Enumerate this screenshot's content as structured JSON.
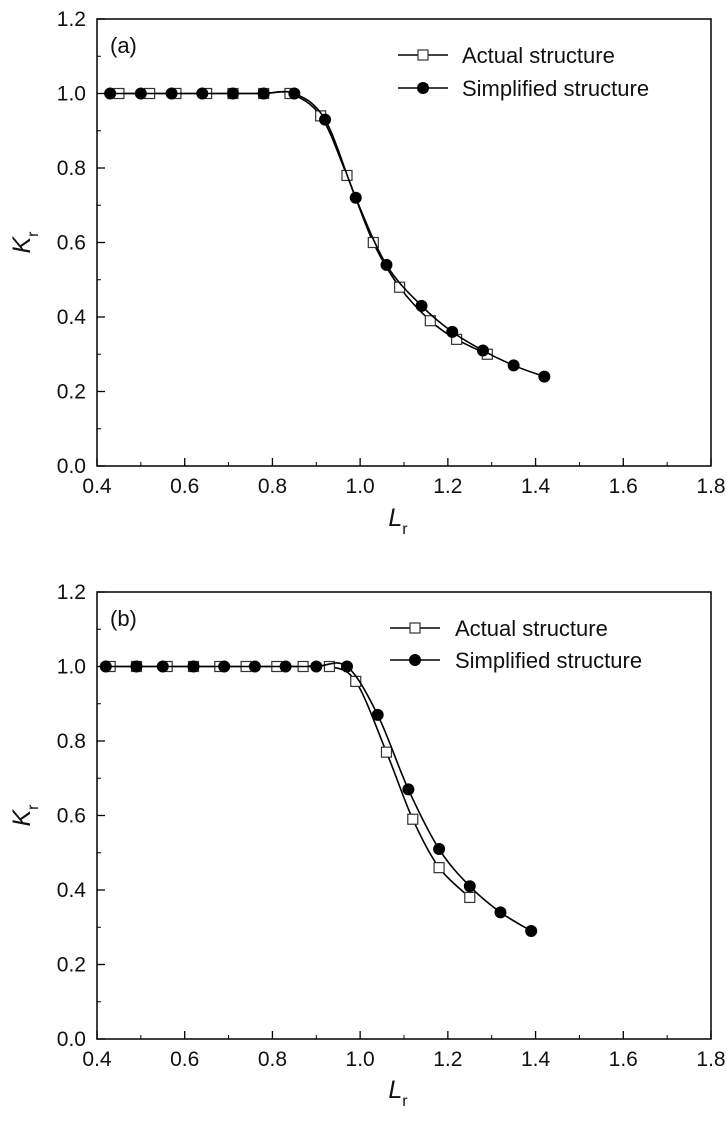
{
  "chart_data": [
    {
      "type": "line",
      "panel_label": "(a)",
      "xlabel": "L",
      "xlabel_sub": "r",
      "ylabel": "K",
      "ylabel_sub": "r",
      "xlim": [
        0.4,
        1.8
      ],
      "ylim": [
        0.0,
        1.2
      ],
      "xticks": [
        "0.4",
        "0.6",
        "0.8",
        "1.0",
        "1.2",
        "1.4",
        "1.6",
        "1.8"
      ],
      "yticks": [
        "0.0",
        "0.2",
        "0.4",
        "0.6",
        "0.8",
        "1.0",
        "1.2"
      ],
      "grid": false,
      "legend_position": "top-right",
      "series": [
        {
          "name": "Actual structure",
          "marker": "open-square",
          "x": [
            0.45,
            0.52,
            0.58,
            0.65,
            0.71,
            0.78,
            0.84,
            0.91,
            0.97,
            1.03,
            1.09,
            1.16,
            1.22,
            1.29
          ],
          "y": [
            1.0,
            1.0,
            1.0,
            1.0,
            1.0,
            1.0,
            1.0,
            0.94,
            0.78,
            0.6,
            0.48,
            0.39,
            0.34,
            0.3
          ]
        },
        {
          "name": "Simplified structure",
          "marker": "filled-circle",
          "x": [
            0.43,
            0.5,
            0.57,
            0.64,
            0.71,
            0.78,
            0.85,
            0.92,
            0.99,
            1.06,
            1.14,
            1.21,
            1.28,
            1.35,
            1.42
          ],
          "y": [
            1.0,
            1.0,
            1.0,
            1.0,
            1.0,
            1.0,
            1.0,
            0.93,
            0.72,
            0.54,
            0.43,
            0.36,
            0.31,
            0.27,
            0.24
          ]
        }
      ]
    },
    {
      "type": "line",
      "panel_label": "(b)",
      "xlabel": "L",
      "xlabel_sub": "r",
      "ylabel": "K",
      "ylabel_sub": "r",
      "xlim": [
        0.4,
        1.8
      ],
      "ylim": [
        0.0,
        1.2
      ],
      "xticks": [
        "0.4",
        "0.6",
        "0.8",
        "1.0",
        "1.2",
        "1.4",
        "1.6",
        "1.8"
      ],
      "yticks": [
        "0.0",
        "0.2",
        "0.4",
        "0.6",
        "0.8",
        "1.0",
        "1.2"
      ],
      "grid": false,
      "legend_position": "top-right",
      "series": [
        {
          "name": "Actual structure",
          "marker": "open-square",
          "x": [
            0.43,
            0.49,
            0.56,
            0.62,
            0.68,
            0.74,
            0.81,
            0.87,
            0.93,
            0.99,
            1.06,
            1.12,
            1.18,
            1.25
          ],
          "y": [
            1.0,
            1.0,
            1.0,
            1.0,
            1.0,
            1.0,
            1.0,
            1.0,
            1.0,
            0.96,
            0.77,
            0.59,
            0.46,
            0.38
          ]
        },
        {
          "name": "Simplified structure",
          "marker": "filled-circle",
          "x": [
            0.42,
            0.49,
            0.55,
            0.62,
            0.69,
            0.76,
            0.83,
            0.9,
            0.97,
            1.04,
            1.11,
            1.18,
            1.25,
            1.32,
            1.39
          ],
          "y": [
            1.0,
            1.0,
            1.0,
            1.0,
            1.0,
            1.0,
            1.0,
            1.0,
            1.0,
            0.87,
            0.67,
            0.51,
            0.41,
            0.34,
            0.29
          ]
        }
      ]
    }
  ]
}
